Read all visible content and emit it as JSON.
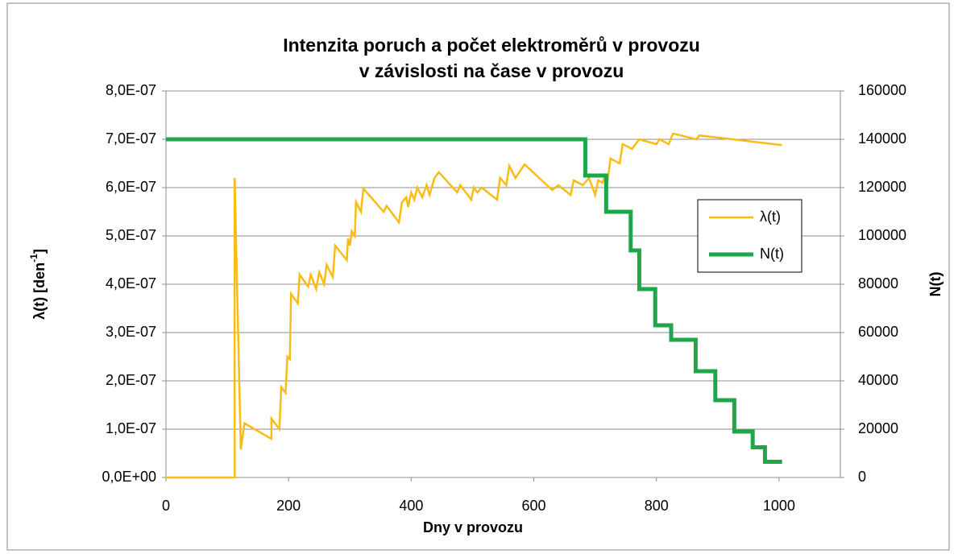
{
  "chart_data": {
    "type": "line",
    "title": [
      "Intenzita poruch a počet elektroměrů v provozu",
      "v závislosti na čase v provozu"
    ],
    "x_label": "Dny v provozu",
    "y_label": [
      "λ(t) [den",
      "-1",
      "]"
    ],
    "y2_label": "N(t)",
    "xlim": [
      0,
      1100
    ],
    "xticks": [
      0,
      200,
      400,
      600,
      800,
      1000
    ],
    "ylim": [
      0,
      8e-07
    ],
    "yticks": [
      {
        "value": 0,
        "label": "0,0E+00"
      },
      {
        "value": 1e-07,
        "label": "1,0E-07"
      },
      {
        "value": 2e-07,
        "label": "2,0E-07"
      },
      {
        "value": 3e-07,
        "label": "3,0E-07"
      },
      {
        "value": 4e-07,
        "label": "4,0E-07"
      },
      {
        "value": 5e-07,
        "label": "5,0E-07"
      },
      {
        "value": 6e-07,
        "label": "6,0E-07"
      },
      {
        "value": 7e-07,
        "label": "7,0E-07"
      },
      {
        "value": 8e-07,
        "label": "8,0E-07"
      }
    ],
    "y2lim": [
      0,
      160000
    ],
    "y2ticks": [
      0,
      20000,
      40000,
      60000,
      80000,
      100000,
      120000,
      140000,
      160000
    ],
    "grid": true,
    "legend": "right",
    "series": [
      {
        "name": "λ(t)",
        "color": "#f9bc15",
        "x": [
          0,
          112,
          112,
          122,
          128,
          172,
          172,
          185,
          188,
          195,
          198,
          202,
          204,
          215,
          218,
          232,
          236,
          245,
          250,
          258,
          262,
          272,
          276,
          295,
          297,
          300,
          303,
          308,
          310,
          318,
          322,
          355,
          360,
          380,
          385,
          392,
          395,
          400,
          405,
          410,
          418,
          425,
          430,
          438,
          445,
          475,
          480,
          498,
          502,
          508,
          515,
          540,
          545,
          555,
          560,
          570,
          585,
          630,
          640,
          660,
          665,
          680,
          690,
          700,
          705,
          712,
          716,
          720,
          725,
          740,
          745,
          760,
          772,
          800,
          805,
          820,
          827,
          865,
          870,
          1005
        ],
        "values": [
          0,
          0,
          6.2e-07,
          5.8e-08,
          1.12e-07,
          8e-08,
          1.22e-07,
          1e-07,
          1.87e-07,
          1.75e-07,
          2.5e-07,
          2.45e-07,
          3.8e-07,
          3.6e-07,
          4.2e-07,
          3.95e-07,
          4.2e-07,
          3.9e-07,
          4.25e-07,
          4e-07,
          4.4e-07,
          4.15e-07,
          4.8e-07,
          4.5e-07,
          4.95e-07,
          4.8e-07,
          5.1e-07,
          5e-07,
          5.7e-07,
          5.5e-07,
          5.98e-07,
          5.5e-07,
          5.62e-07,
          5.28e-07,
          5.7e-07,
          5.8e-07,
          5.6e-07,
          5.9e-07,
          5.75e-07,
          6e-07,
          5.8e-07,
          6.05e-07,
          5.85e-07,
          6.2e-07,
          6.32e-07,
          5.9e-07,
          6.05e-07,
          5.75e-07,
          6e-07,
          5.9e-07,
          6e-07,
          5.75e-07,
          6.2e-07,
          6.05e-07,
          6.45e-07,
          6.2e-07,
          6.48e-07,
          5.95e-07,
          6.05e-07,
          5.85e-07,
          6.15e-07,
          6.05e-07,
          6.2e-07,
          5.85e-07,
          6.15e-07,
          6.1e-07,
          6.25e-07,
          6.1e-07,
          6.6e-07,
          6.5e-07,
          6.9e-07,
          6.8e-07,
          7e-07,
          6.9e-07,
          7e-07,
          6.9e-07,
          7.12e-07,
          7e-07,
          7.08e-07,
          6.88e-07
        ]
      },
      {
        "name": "N(t)",
        "color": "#1ea64a",
        "axis": "y2",
        "x": [
          0,
          684,
          684,
          718,
          718,
          758,
          758,
          772,
          772,
          798,
          798,
          824,
          824,
          864,
          864,
          896,
          896,
          927,
          927,
          957,
          957,
          977,
          977,
          1005
        ],
        "values": [
          140000,
          140000,
          125000,
          125000,
          110000,
          110000,
          94000,
          94000,
          78000,
          78000,
          63000,
          63000,
          57000,
          57000,
          44000,
          44000,
          32000,
          32000,
          19000,
          19000,
          12500,
          12500,
          6500,
          6500
        ]
      }
    ]
  }
}
